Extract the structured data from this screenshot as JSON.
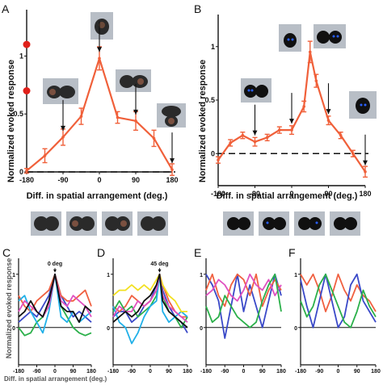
{
  "panel_labels": [
    "A",
    "B",
    "C",
    "D",
    "E",
    "F"
  ],
  "ylabel": "Normalized evoked response",
  "xlabel": "Diff. in spatial arrangement (deg.)",
  "colors": {
    "main_series": "#f0603a",
    "dashed_zero": "#111111",
    "red_marker": "#e0201a",
    "thumb_bg": "#b8bec6",
    "small_series": [
      "#3a49c8",
      "#f06040",
      "#2bb04a",
      "#20b0e8",
      "#e050c0",
      "#f2e020",
      "#101010"
    ]
  },
  "chart_data": [
    {
      "panel": "A",
      "type": "line",
      "x": [
        -180,
        -135,
        -90,
        -45,
        0,
        45,
        90,
        135,
        180
      ],
      "series": [
        {
          "values": [
            0.01,
            0.14,
            0.3,
            0.48,
            0.98,
            0.47,
            0.44,
            0.29,
            0.02
          ],
          "error": [
            0.02,
            0.06,
            0.07,
            0.07,
            0.1,
            0.05,
            0.08,
            0.07,
            0.05
          ]
        }
      ],
      "xlabel": "Diff. in spatial arrangement (deg.)",
      "ylabel": "Normalized evoked response",
      "xticks": [
        "-180",
        "-90",
        "0",
        "90",
        "180"
      ],
      "yticks": [
        "0",
        "0.5",
        "1"
      ],
      "xlim": [
        -180,
        180
      ],
      "ylim": [
        0,
        1.4
      ],
      "reference_line": {
        "y": 0,
        "style": "dashed"
      },
      "annotations": [
        {
          "kind": "arrow",
          "x": -90,
          "y": 0.3
        },
        {
          "kind": "arrow",
          "x": 0,
          "y": 0.98
        },
        {
          "kind": "arrow",
          "x": 90,
          "y": 0.44
        },
        {
          "kind": "arrow",
          "x": 180,
          "y": 0.02
        },
        {
          "kind": "marker",
          "y": 1.1
        },
        {
          "kind": "marker",
          "y": 0.7
        }
      ],
      "grid": false
    },
    {
      "panel": "B",
      "type": "line",
      "x": [
        -180,
        -150,
        -120,
        -90,
        -60,
        -30,
        0,
        30,
        45,
        60,
        90,
        120,
        150,
        180
      ],
      "series": [
        {
          "values": [
            -0.06,
            0.1,
            0.17,
            0.11,
            0.15,
            0.22,
            0.22,
            0.44,
            0.95,
            0.68,
            0.31,
            0.17,
            0.0,
            -0.17
          ],
          "error": [
            0.03,
            0.03,
            0.03,
            0.04,
            0.03,
            0.03,
            0.04,
            0.05,
            0.1,
            0.06,
            0.04,
            0.03,
            0.03,
            0.05
          ]
        }
      ],
      "xlabel": "Diff. in spatial arrangement (deg.)",
      "ylabel": "Normalized evoked response",
      "xticks": [
        "-180",
        "-90",
        "0",
        "90",
        "180"
      ],
      "yticks": [
        "0",
        "0.5",
        "1"
      ],
      "xlim": [
        -180,
        180
      ],
      "ylim": [
        -0.3,
        1.3
      ],
      "reference_line": {
        "y": 0,
        "style": "dashed"
      },
      "annotations": [
        {
          "kind": "arrow",
          "x": -90,
          "y": 0.11
        },
        {
          "kind": "arrow",
          "x": 0,
          "y": 0.22
        },
        {
          "kind": "arrow",
          "x": 90,
          "y": 0.31
        },
        {
          "kind": "arrow",
          "x": 180,
          "y": -0.17
        }
      ],
      "grid": false
    },
    {
      "panel": "C",
      "type": "line",
      "x": [
        -180,
        -150,
        -120,
        -90,
        -60,
        -30,
        0,
        30,
        60,
        90,
        120,
        150,
        180
      ],
      "annotation_text": "0 deg",
      "annotation_x": 0,
      "series": [
        {
          "color": "#3a49c8",
          "values": [
            0.1,
            0.2,
            0.3,
            0.2,
            0.4,
            0.6,
            1.0,
            0.6,
            0.4,
            0.2,
            0.3,
            0.2,
            0.1
          ]
        },
        {
          "color": "#f06040",
          "values": [
            0.6,
            0.4,
            0.3,
            0.5,
            0.6,
            0.7,
            1.0,
            0.6,
            0.5,
            0.5,
            0.6,
            0.7,
            0.4
          ]
        },
        {
          "color": "#2bb04a",
          "values": [
            0.0,
            -0.15,
            -0.1,
            0.1,
            0.2,
            0.4,
            1.0,
            0.4,
            0.2,
            0.0,
            -0.1,
            -0.15,
            -0.1
          ]
        },
        {
          "color": "#20b0e8",
          "values": [
            0.5,
            0.6,
            0.3,
            0.1,
            -0.1,
            0.3,
            1.0,
            0.2,
            0.1,
            0.3,
            0.1,
            0.2,
            0.3
          ]
        },
        {
          "color": "#e050c0",
          "values": [
            0.3,
            0.5,
            0.4,
            0.3,
            0.2,
            0.4,
            1.0,
            0.5,
            0.4,
            0.6,
            0.5,
            0.4,
            0.2
          ]
        },
        {
          "color": "#101010",
          "values": [
            0.2,
            0.3,
            0.5,
            0.3,
            0.2,
            0.5,
            1.0,
            0.4,
            0.3,
            0.3,
            0.1,
            0.4,
            0.3
          ]
        }
      ],
      "xticks": [
        "-180",
        "-90",
        "0",
        "90",
        "180"
      ],
      "yticks": [
        "0",
        "1"
      ],
      "xlim": [
        -180,
        180
      ],
      "ylim": [
        -0.7,
        1.3
      ]
    },
    {
      "panel": "D",
      "type": "line",
      "x": [
        -180,
        -150,
        -120,
        -90,
        -60,
        -30,
        0,
        30,
        45,
        60,
        90,
        120,
        150,
        180
      ],
      "annotation_text": "45 deg",
      "annotation_x": 45,
      "series": [
        {
          "color": "#3a49c8",
          "values": [
            0.2,
            0.3,
            0.3,
            0.1,
            0.2,
            0.4,
            0.5,
            0.8,
            1.0,
            0.7,
            0.4,
            0.2,
            0.1,
            -0.1
          ]
        },
        {
          "color": "#f06040",
          "values": [
            0.4,
            0.3,
            0.4,
            0.6,
            0.5,
            0.4,
            0.5,
            0.7,
            1.0,
            0.8,
            0.5,
            0.3,
            0.2,
            0.2
          ]
        },
        {
          "color": "#2bb04a",
          "values": [
            0.3,
            0.5,
            0.3,
            0.4,
            0.2,
            0.3,
            0.4,
            0.6,
            1.0,
            0.6,
            0.3,
            0.2,
            0.0,
            0.2
          ]
        },
        {
          "color": "#20b0e8",
          "values": [
            0.4,
            0.1,
            0.0,
            -0.3,
            -0.1,
            0.2,
            0.4,
            0.5,
            1.0,
            0.3,
            0.1,
            0.2,
            0.3,
            0.2
          ]
        },
        {
          "color": "#f2e020",
          "values": [
            0.6,
            0.7,
            0.7,
            0.8,
            0.7,
            0.8,
            0.7,
            0.9,
            1.0,
            0.8,
            0.6,
            0.5,
            0.3,
            0.3
          ]
        },
        {
          "color": "#e050c0",
          "values": [
            0.2,
            0.4,
            0.3,
            0.3,
            0.5,
            0.4,
            0.5,
            0.7,
            1.0,
            0.6,
            0.4,
            0.3,
            0.2,
            0.1
          ]
        },
        {
          "color": "#101010",
          "values": [
            0.1,
            0.2,
            0.3,
            0.2,
            0.3,
            0.5,
            0.6,
            0.8,
            1.0,
            0.5,
            0.3,
            0.2,
            0.1,
            0.0
          ]
        }
      ],
      "xticks": [
        "-180",
        "-90",
        "0",
        "90",
        "180"
      ],
      "yticks": [
        "0",
        "1"
      ],
      "xlim": [
        -180,
        180
      ],
      "ylim": [
        -0.7,
        1.3
      ]
    },
    {
      "panel": "E",
      "type": "line",
      "x": [
        -180,
        -150,
        -120,
        -90,
        -60,
        -30,
        0,
        30,
        60,
        90,
        120,
        150,
        180
      ],
      "series": [
        {
          "color": "#3a49c8",
          "values": [
            1.0,
            0.8,
            0.5,
            -0.2,
            0.4,
            1.0,
            0.3,
            0.8,
            0.4,
            0.0,
            0.5,
            1.0,
            0.6
          ]
        },
        {
          "color": "#f06040",
          "values": [
            0.7,
            1.0,
            0.6,
            0.4,
            0.8,
            1.0,
            0.9,
            0.6,
            1.0,
            0.4,
            0.7,
            0.9,
            0.7
          ]
        },
        {
          "color": "#e050c0",
          "values": [
            0.6,
            0.7,
            0.9,
            0.8,
            0.6,
            0.5,
            0.7,
            1.0,
            0.8,
            0.7,
            0.9,
            0.6,
            0.8
          ]
        },
        {
          "color": "#2bb04a",
          "values": [
            0.4,
            0.1,
            0.2,
            0.6,
            0.4,
            0.2,
            0.1,
            0.0,
            0.1,
            0.5,
            0.8,
            1.0,
            0.3
          ]
        }
      ],
      "xticks": [
        "-180",
        "-90",
        "0",
        "90",
        "180"
      ],
      "yticks": [
        "0",
        "1"
      ],
      "xlim": [
        -180,
        180
      ],
      "ylim": [
        -0.7,
        1.3
      ]
    },
    {
      "panel": "F",
      "type": "line",
      "x": [
        -180,
        -150,
        -120,
        -90,
        -60,
        -30,
        0,
        30,
        60,
        90,
        120,
        150,
        180
      ],
      "series": [
        {
          "color": "#f06040",
          "values": [
            1.0,
            0.8,
            1.0,
            0.7,
            0.3,
            0.6,
            1.0,
            0.7,
            0.5,
            0.8,
            0.6,
            0.5,
            0.3
          ]
        },
        {
          "color": "#3a49c8",
          "values": [
            0.9,
            0.4,
            0.0,
            0.5,
            1.0,
            0.5,
            0.0,
            0.2,
            0.8,
            1.0,
            0.5,
            0.3,
            0.1
          ]
        },
        {
          "color": "#2bb04a",
          "values": [
            0.5,
            0.2,
            0.4,
            0.8,
            1.0,
            0.7,
            0.4,
            0.1,
            0.0,
            0.3,
            0.7,
            0.4,
            0.2
          ]
        }
      ],
      "xticks": [
        "-180",
        "-90",
        "0",
        "90",
        "180"
      ],
      "yticks": [
        "0",
        "1"
      ],
      "xlim": [
        -180,
        180
      ],
      "ylim": [
        -0.7,
        1.3
      ]
    }
  ]
}
